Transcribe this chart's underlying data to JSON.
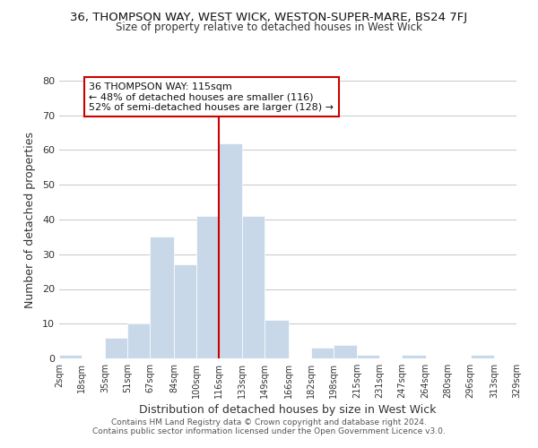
{
  "title": "36, THOMPSON WAY, WEST WICK, WESTON-SUPER-MARE, BS24 7FJ",
  "subtitle": "Size of property relative to detached houses in West Wick",
  "xlabel": "Distribution of detached houses by size in West Wick",
  "ylabel": "Number of detached properties",
  "bin_edges": [
    2,
    18,
    35,
    51,
    67,
    84,
    100,
    116,
    133,
    149,
    166,
    182,
    198,
    215,
    231,
    247,
    264,
    280,
    296,
    313,
    329
  ],
  "bin_heights": [
    1,
    0,
    6,
    10,
    35,
    27,
    41,
    62,
    41,
    11,
    0,
    3,
    4,
    1,
    0,
    1,
    0,
    0,
    1,
    0
  ],
  "bar_color": "#c8d8e8",
  "bar_edge_color": "#ffffff",
  "vline_x": 116,
  "vline_color": "#cc0000",
  "annotation_title": "36 THOMPSON WAY: 115sqm",
  "annotation_line1": "← 48% of detached houses are smaller (116)",
  "annotation_line2": "52% of semi-detached houses are larger (128) →",
  "annotation_box_edge_color": "#cc0000",
  "annotation_box_face_color": "#ffffff",
  "tick_labels": [
    "2sqm",
    "18sqm",
    "35sqm",
    "51sqm",
    "67sqm",
    "84sqm",
    "100sqm",
    "116sqm",
    "133sqm",
    "149sqm",
    "166sqm",
    "182sqm",
    "198sqm",
    "215sqm",
    "231sqm",
    "247sqm",
    "264sqm",
    "280sqm",
    "296sqm",
    "313sqm",
    "329sqm"
  ],
  "ylim": [
    0,
    80
  ],
  "yticks": [
    0,
    10,
    20,
    30,
    40,
    50,
    60,
    70,
    80
  ],
  "footer_line1": "Contains HM Land Registry data © Crown copyright and database right 2024.",
  "footer_line2": "Contains public sector information licensed under the Open Government Licence v3.0.",
  "background_color": "#ffffff",
  "grid_color": "#cccccc"
}
